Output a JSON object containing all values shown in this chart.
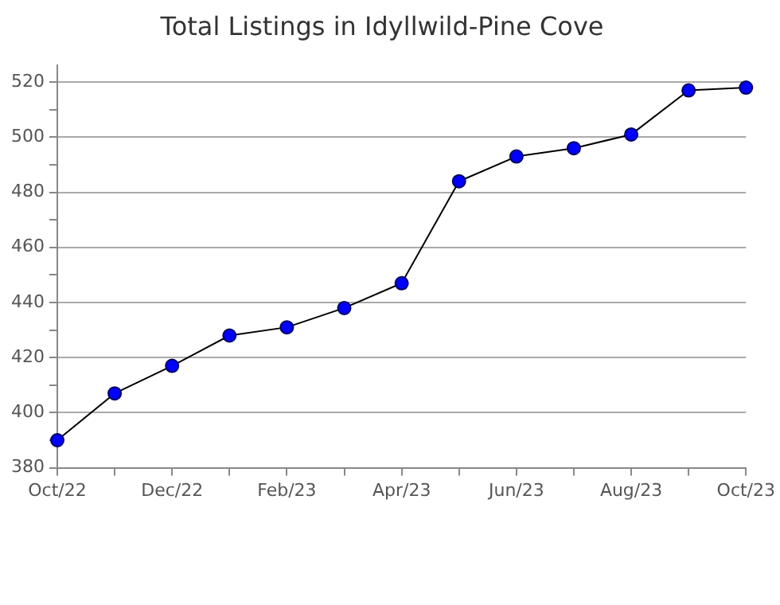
{
  "chart_data": {
    "type": "line",
    "title": "Total Listings in Idyllwild-Pine Cove",
    "categories": [
      "Oct/22",
      null,
      "Dec/22",
      null,
      "Feb/23",
      null,
      "Apr/23",
      null,
      "Jun/23",
      null,
      "Aug/23",
      null,
      "Oct/23"
    ],
    "series": [
      {
        "color": "#0000ff",
        "values": [
          390,
          407,
          417,
          428,
          431,
          438,
          447,
          484,
          493,
          496,
          501,
          517,
          518
        ]
      }
    ],
    "ylim": [
      380,
      526
    ],
    "yticks": [
      380,
      {
        "value": 390,
        "label": null
      },
      400,
      {
        "value": 410,
        "label": null
      },
      420,
      {
        "value": 430,
        "label": null
      },
      440,
      {
        "value": 450,
        "label": null
      },
      460,
      {
        "value": 470,
        "label": null
      },
      480,
      {
        "value": 490,
        "label": null
      },
      500,
      {
        "value": 510,
        "label": null
      },
      520
    ],
    "grid": "y",
    "legend": false,
    "marker": "circle",
    "line_style": "solid"
  }
}
